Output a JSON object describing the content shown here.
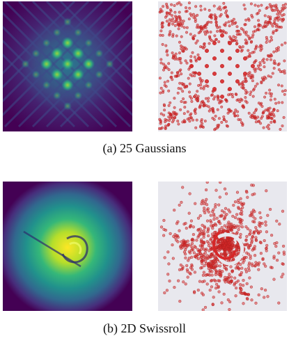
{
  "figure": {
    "rows": [
      {
        "caption": "(a) 25 Gaussians",
        "density_panel": {
          "name": "25-gaussians-density-map"
        },
        "samples_panel": {
          "name": "25-gaussians-samples-scatter"
        }
      },
      {
        "caption": "(b) 2D Swissroll",
        "density_panel": {
          "name": "swissroll-density-map"
        },
        "samples_panel": {
          "name": "swissroll-samples-scatter"
        }
      }
    ],
    "colors": {
      "viridis_dark": "#440154",
      "viridis_mid": "#21918c",
      "viridis_bright": "#fde725",
      "sample_point": "#d62728",
      "scatter_bg": "#e8e8ee"
    }
  }
}
